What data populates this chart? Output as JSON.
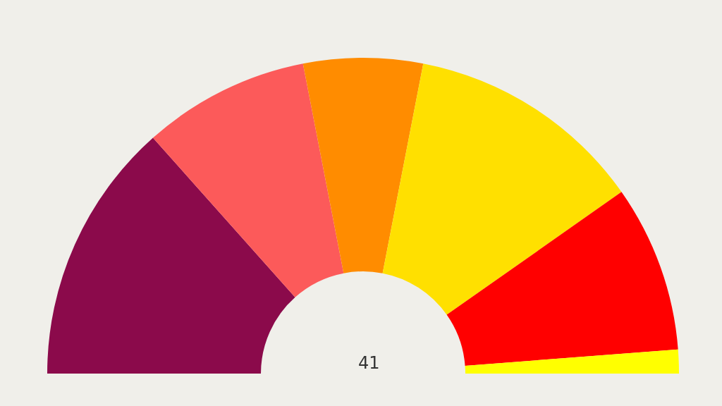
{
  "chart_data": {
    "type": "donut",
    "categories": [
      null,
      null,
      null,
      null,
      null,
      null
    ],
    "values": [
      26.83,
      17.07,
      12.2,
      24.39,
      17.07,
      2.44
    ],
    "colors": [
      "#8b0a4b",
      "#fc5a5a",
      "#ff8c00",
      "#ffe000",
      "#ff0000",
      "#ffff00"
    ],
    "annotations": [
      "41"
    ]
  }
}
